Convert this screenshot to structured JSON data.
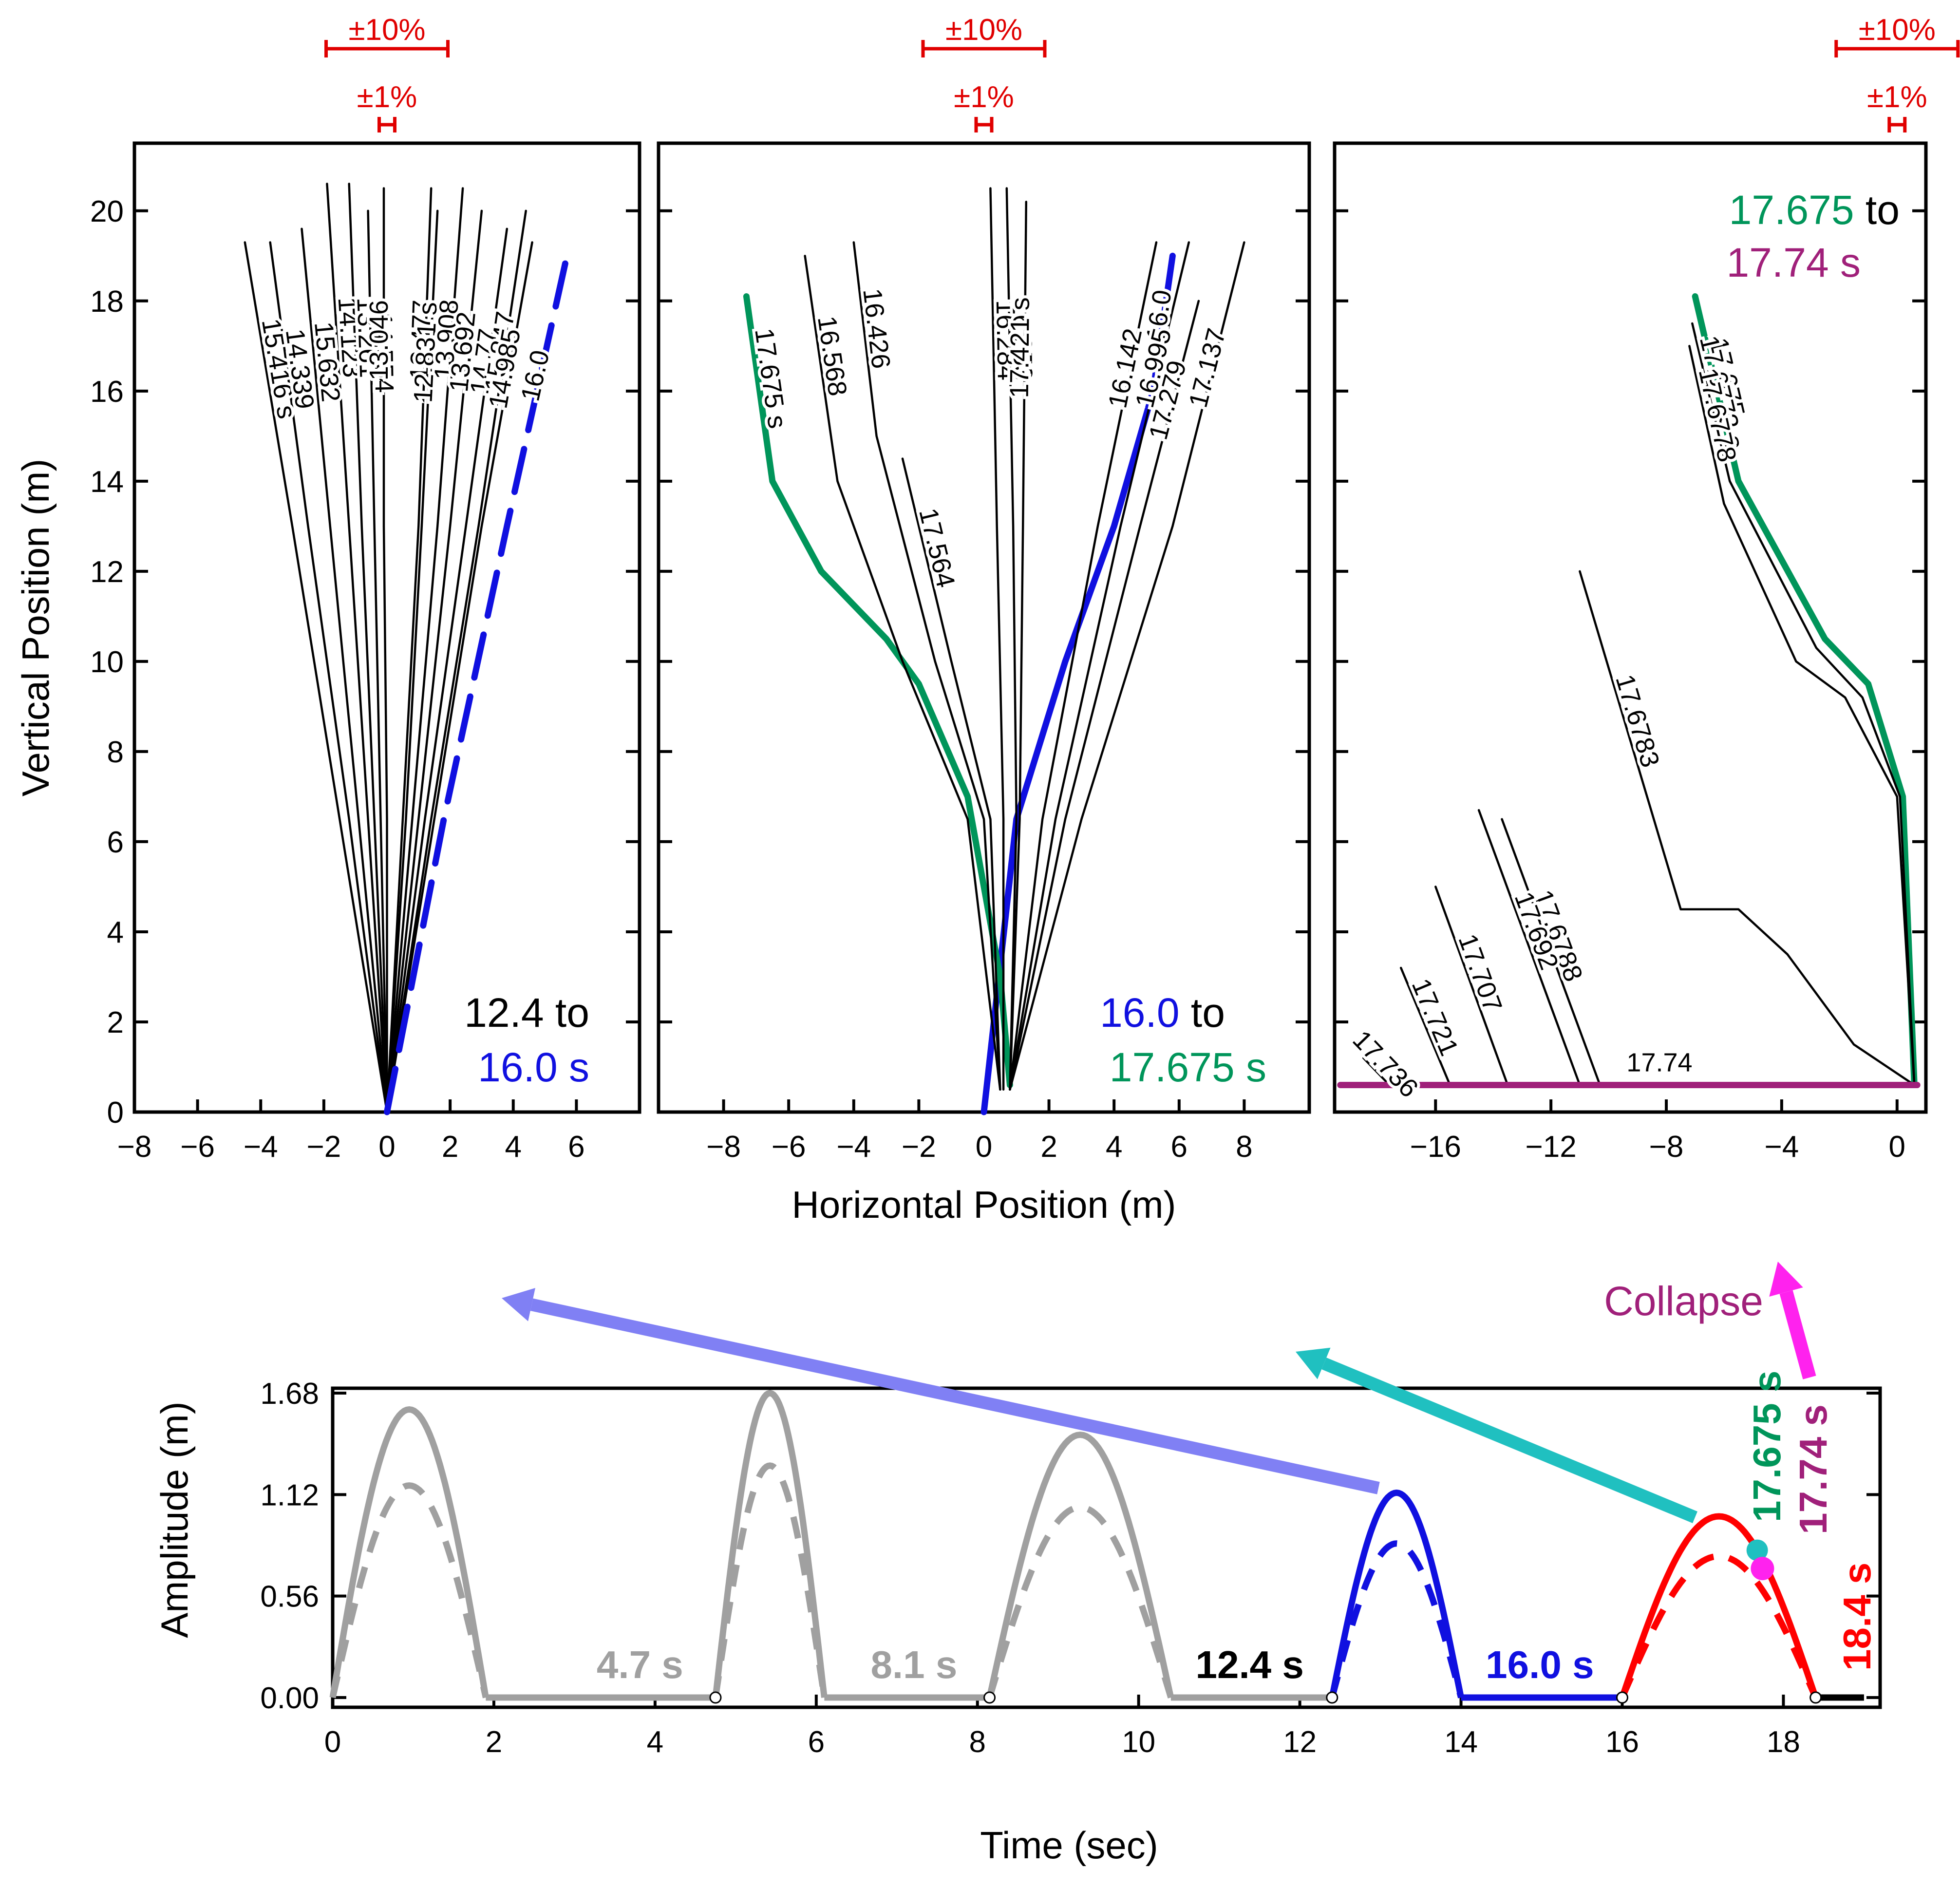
{
  "colors": {
    "black": "#000000",
    "blue": "#1010e0",
    "green": "#00955a",
    "magenta": "#a0207a",
    "collapse": "#ff22ee",
    "red": "#ff0000",
    "gray": "#a0a0a0",
    "arrow_blue": "#8080f4",
    "arrow_teal": "#20c0c0",
    "pct_red": "#e00000"
  },
  "chart_data": [
    {
      "type": "line",
      "panel": "left",
      "xlabel": "",
      "ylabel": "Vertical Position (m)",
      "xlim": [
        -8,
        8
      ],
      "ylim": [
        0,
        21.5
      ],
      "xticks": [
        -8,
        -6,
        -4,
        -2,
        0,
        2,
        4,
        6
      ],
      "xtick_labels": [
        "−8",
        "−6",
        "−4",
        "−2",
        "0",
        "2",
        "4",
        "6"
      ],
      "yticks": [
        0,
        2,
        4,
        6,
        8,
        10,
        12,
        14,
        16,
        18,
        20
      ],
      "ytick_labels": [
        "0",
        "2",
        "4",
        "6",
        "8",
        "10",
        "12",
        "14",
        "16",
        "18",
        "20"
      ],
      "range_text": {
        "line1": "12.4 to",
        "line2": "16.0 s"
      },
      "scale_bars": {
        "ten": "±10%",
        "one": "±1%",
        "x": 0
      },
      "series": [
        {
          "name": "15.416 s",
          "x": [
            0,
            -1.5,
            -3,
            -4.5
          ],
          "y": [
            0,
            6.5,
            13,
            19.3
          ],
          "color": "black"
        },
        {
          "name": "14.339",
          "x": [
            0,
            -1.2,
            -2.5,
            -3.7
          ],
          "y": [
            0,
            6.5,
            13,
            19.3
          ],
          "color": "black"
        },
        {
          "name": "15.632",
          "x": [
            0,
            -0.9,
            -1.8,
            -2.7
          ],
          "y": [
            0,
            6.5,
            13,
            19.6
          ],
          "color": "black"
        },
        {
          "name": "14.123",
          "x": [
            0,
            -0.6,
            -1.2,
            -1.9
          ],
          "y": [
            0,
            6.5,
            13,
            20.6
          ],
          "color": "black"
        },
        {
          "name": "13.261",
          "x": [
            0,
            -0.4,
            -0.8,
            -1.2
          ],
          "y": [
            0,
            6.5,
            13,
            20.6
          ],
          "color": "black"
        },
        {
          "name": "14.554",
          "x": [
            0,
            -0.2,
            -0.4,
            -0.6
          ],
          "y": [
            0,
            6.5,
            13,
            20.0
          ],
          "color": "black"
        },
        {
          "name": "13.046",
          "x": [
            0,
            0,
            -0.1,
            -0.1
          ],
          "y": [
            0,
            6.5,
            13,
            20.5
          ],
          "color": "black"
        },
        {
          "name": "13.477",
          "x": [
            0,
            0.5,
            1.0,
            1.4
          ],
          "y": [
            0,
            6.5,
            13,
            20.5
          ],
          "color": "black"
        },
        {
          "name": "12.831 s",
          "x": [
            0,
            0.6,
            1.1,
            1.6
          ],
          "y": [
            0,
            6.5,
            13,
            20.0
          ],
          "color": "black"
        },
        {
          "name": "13.908",
          "x": [
            0,
            0.8,
            1.6,
            2.4
          ],
          "y": [
            0,
            6.5,
            13,
            20.5
          ],
          "color": "black"
        },
        {
          "name": "13.692",
          "x": [
            0,
            1.0,
            2.0,
            3.0
          ],
          "y": [
            0,
            6.5,
            13,
            20.0
          ],
          "color": "black"
        },
        {
          "name": "14.77",
          "x": [
            0,
            1.2,
            2.5,
            3.8
          ],
          "y": [
            0,
            6.5,
            13,
            19.6
          ],
          "color": "black"
        },
        {
          "name": "15.847",
          "x": [
            0,
            1.4,
            2.9,
            4.4
          ],
          "y": [
            0,
            6.5,
            13,
            20.0
          ],
          "color": "black"
        },
        {
          "name": "14.985",
          "x": [
            0,
            1.5,
            3.0,
            4.6
          ],
          "y": [
            0,
            6.5,
            13,
            19.3
          ],
          "color": "black"
        },
        {
          "name": "16.0",
          "x": [
            0,
            1.8,
            3.8,
            5.7
          ],
          "y": [
            0,
            6.5,
            13,
            19.0
          ],
          "color": "blue",
          "dashed": true
        }
      ],
      "labels": [
        "15.416 s",
        "14.339",
        "15.632",
        "14.123",
        "13.261",
        "14.554",
        "13.046",
        "13.477",
        "12.831 s",
        "13.908",
        "14.985",
        "13.692",
        "14.77",
        "15.847",
        "16.0"
      ]
    },
    {
      "type": "line",
      "panel": "middle",
      "xlabel": "Horizontal Position (m)",
      "ylabel": "",
      "xlim": [
        -10,
        10
      ],
      "ylim": [
        0,
        21.5
      ],
      "xticks": [
        -8,
        -6,
        -4,
        -2,
        0,
        2,
        4,
        6,
        8
      ],
      "xtick_labels": [
        "−8",
        "−6",
        "−4",
        "−2",
        "0",
        "2",
        "4",
        "6",
        "8"
      ],
      "range_text": {
        "line1": "16.0",
        "line1b": " to",
        "line2": "17.675 s"
      },
      "scale_bars": {
        "ten": "±10%",
        "one": "±1%",
        "x": 0
      },
      "series": [
        {
          "name": "16.0",
          "x": [
            0,
            1.0,
            2.5,
            4.0,
            5.2,
            5.8
          ],
          "y": [
            0,
            6.5,
            10,
            13,
            16,
            19.0
          ],
          "color": "blue"
        },
        {
          "name": "17.675 s",
          "x": [
            0.8,
            0.5,
            -0.5,
            -2.0,
            -3.0,
            -5.0,
            -6.5,
            -7.3
          ],
          "y": [
            0.6,
            3,
            7,
            9.5,
            10.5,
            12,
            14,
            18.1
          ],
          "color": "green"
        },
        {
          "name": "16.568",
          "x": [
            0.5,
            -0.5,
            -2.5,
            -4.5,
            -5.5
          ],
          "y": [
            0.5,
            6.5,
            10,
            14,
            19.0
          ],
          "color": "black"
        },
        {
          "name": "16.426",
          "x": [
            0.5,
            0,
            -1.5,
            -3.3,
            -4.0
          ],
          "y": [
            0.5,
            6.5,
            10,
            15,
            19.3
          ],
          "color": "black"
        },
        {
          "name": "17.564",
          "x": [
            0.5,
            0.2,
            -1.0,
            -2.5
          ],
          "y": [
            0.5,
            6.5,
            10,
            14.5
          ],
          "color": "black"
        },
        {
          "name": "16.284",
          "x": [
            0.6,
            0.6,
            0.4,
            0.2
          ],
          "y": [
            0.5,
            6.5,
            13,
            20.5
          ],
          "color": "black"
        },
        {
          "name": "16.853",
          "x": [
            0.8,
            1.0,
            0.9,
            0.7
          ],
          "y": [
            0.5,
            6.5,
            13,
            20.5
          ],
          "color": "black"
        },
        {
          "name": "17.421 s",
          "x": [
            0.8,
            1.1,
            1.2,
            1.3
          ],
          "y": [
            0.5,
            6.5,
            13,
            20.2
          ],
          "color": "black"
        },
        {
          "name": "16.142",
          "x": [
            0.8,
            1.8,
            3.5,
            5.3
          ],
          "y": [
            0.5,
            6.5,
            13,
            19.3
          ],
          "color": "black"
        },
        {
          "name": "16.995",
          "x": [
            0.8,
            2.2,
            4.2,
            6.3
          ],
          "y": [
            0.5,
            6.5,
            13,
            19.3
          ],
          "color": "black"
        },
        {
          "name": "17.279",
          "x": [
            0.8,
            2.5,
            4.8,
            6.6
          ],
          "y": [
            0.5,
            6.5,
            13,
            18.0
          ],
          "color": "black"
        },
        {
          "name": "17.137",
          "x": [
            0.8,
            3.0,
            5.8,
            8.0
          ],
          "y": [
            0.5,
            6.5,
            13,
            19.3
          ],
          "color": "black"
        }
      ],
      "labels": [
        "17.675 s",
        "16.568",
        "16.426",
        "17.564",
        "16.284",
        "16.853",
        "17.421 s",
        "16.142",
        "16.995",
        "17.279",
        "17.137"
      ]
    },
    {
      "type": "line",
      "panel": "right",
      "xlabel": "",
      "ylabel": "",
      "xlim": [
        -19.5,
        1
      ],
      "ylim": [
        0,
        21.5
      ],
      "xticks": [
        -16,
        -12,
        -8,
        -4,
        0
      ],
      "xtick_labels": [
        "−16",
        "−12",
        "−8",
        "−4",
        "0"
      ],
      "range_text": {
        "line1": "17.675",
        "line1b": " to",
        "line2": "17.74 s"
      },
      "scale_bars": {
        "ten": "±10%",
        "one": "±1%",
        "x": 0
      },
      "series": [
        {
          "name": "17.675",
          "x": [
            0.6,
            0.2,
            -1.0,
            -2.5,
            -5.5,
            -7.0
          ],
          "y": [
            0.6,
            7,
            9.5,
            10.5,
            14,
            18.1
          ],
          "color": "green"
        },
        {
          "name": "17.6773 s",
          "x": [
            0.6,
            0.1,
            -1.2,
            -2.8,
            -5.8,
            -7.1
          ],
          "y": [
            0.6,
            7,
            9.2,
            10.3,
            14,
            17.5
          ],
          "color": "black"
        },
        {
          "name": "17.6778",
          "x": [
            0.6,
            0,
            -1.8,
            -3.5,
            -6.0,
            -7.2
          ],
          "y": [
            0.6,
            7,
            9.2,
            10.0,
            13.5,
            17.0
          ],
          "color": "black"
        },
        {
          "name": "17.6783",
          "x": [
            0.6,
            -1.5,
            -3.8,
            -5.5,
            -7.5,
            -11
          ],
          "y": [
            0.6,
            1.5,
            3.5,
            4.5,
            4.5,
            12.0
          ],
          "color": "black"
        },
        {
          "name": "17.6788",
          "x": [
            -10.3,
            -13.7
          ],
          "y": [
            0.6,
            6.5
          ],
          "color": "black"
        },
        {
          "name": "17.692",
          "x": [
            -11.0,
            -14.5
          ],
          "y": [
            0.6,
            6.7
          ],
          "color": "black"
        },
        {
          "name": "17.707",
          "x": [
            -13.5,
            -16.0
          ],
          "y": [
            0.6,
            5.0
          ],
          "color": "black"
        },
        {
          "name": "17.721",
          "x": [
            -15.5,
            -17.2
          ],
          "y": [
            0.6,
            3.2
          ],
          "color": "black"
        },
        {
          "name": "17.736",
          "x": [
            -17.6,
            -18.5
          ],
          "y": [
            0.6,
            1.2
          ],
          "color": "black"
        },
        {
          "name": "17.74",
          "x": [
            -19.3,
            0.7
          ],
          "y": [
            0.6,
            0.6
          ],
          "color": "magenta"
        }
      ],
      "labels": [
        "17.6773 s",
        "17.675",
        "17.6778",
        "17.6783",
        "17.692",
        "17.707",
        "17.721",
        "17.6788",
        "17.736",
        "17.74"
      ]
    },
    {
      "type": "line",
      "panel": "bottom",
      "xlabel": "Time (sec)",
      "ylabel": "Amplitude (m)",
      "xlim": [
        0,
        19.2
      ],
      "ylim": [
        0,
        1.68
      ],
      "xticks": [
        0,
        2,
        4,
        6,
        8,
        10,
        12,
        14,
        16,
        18
      ],
      "xtick_labels": [
        "0",
        "2",
        "4",
        "6",
        "8",
        "10",
        "12",
        "14",
        "16",
        "18"
      ],
      "yticks": [
        0,
        0.56,
        1.12,
        1.68
      ],
      "ytick_labels": [
        "0.00",
        "0.56",
        "1.12",
        "1.68"
      ],
      "pulses": [
        {
          "start": 0.0,
          "end": 1.9,
          "peak": 1.59,
          "dashed_peak": 1.17,
          "color": "gray"
        },
        {
          "start": 4.75,
          "end": 6.1,
          "peak": 1.68,
          "dashed_peak": 1.28,
          "color": "gray"
        },
        {
          "start": 8.15,
          "end": 10.4,
          "peak": 1.45,
          "dashed_peak": 1.05,
          "color": "gray"
        },
        {
          "start": 12.4,
          "end": 14.0,
          "peak": 1.13,
          "dashed_peak": 0.85,
          "color": "blue"
        },
        {
          "start": 16.0,
          "end": 18.4,
          "peak": 1.0,
          "dashed_peak": 0.78,
          "color": "red"
        }
      ],
      "flats": [
        {
          "from": 1.9,
          "to": 4.75,
          "color": "gray"
        },
        {
          "from": 6.1,
          "to": 8.15,
          "color": "gray"
        },
        {
          "from": 10.4,
          "to": 12.4,
          "color": "gray"
        },
        {
          "from": 14.0,
          "to": 16.0,
          "color": "blue"
        },
        {
          "from": 18.4,
          "to": 19.0,
          "color": "black"
        }
      ],
      "markers": [
        4.75,
        8.15,
        12.4,
        16.0,
        18.4
      ],
      "segment_labels": [
        {
          "text": "4.7 s",
          "x": 4.35,
          "color": "gray"
        },
        {
          "text": "8.1 s",
          "x": 7.75,
          "color": "gray"
        },
        {
          "text": "12.4 s",
          "x": 12.05,
          "color": "black"
        },
        {
          "text": "16.0 s",
          "x": 15.65,
          "color": "blue"
        }
      ],
      "events": {
        "green": "17.675 s",
        "magenta": "17.74 s",
        "red": "18.4 s",
        "collapse": "Collapse"
      }
    }
  ]
}
